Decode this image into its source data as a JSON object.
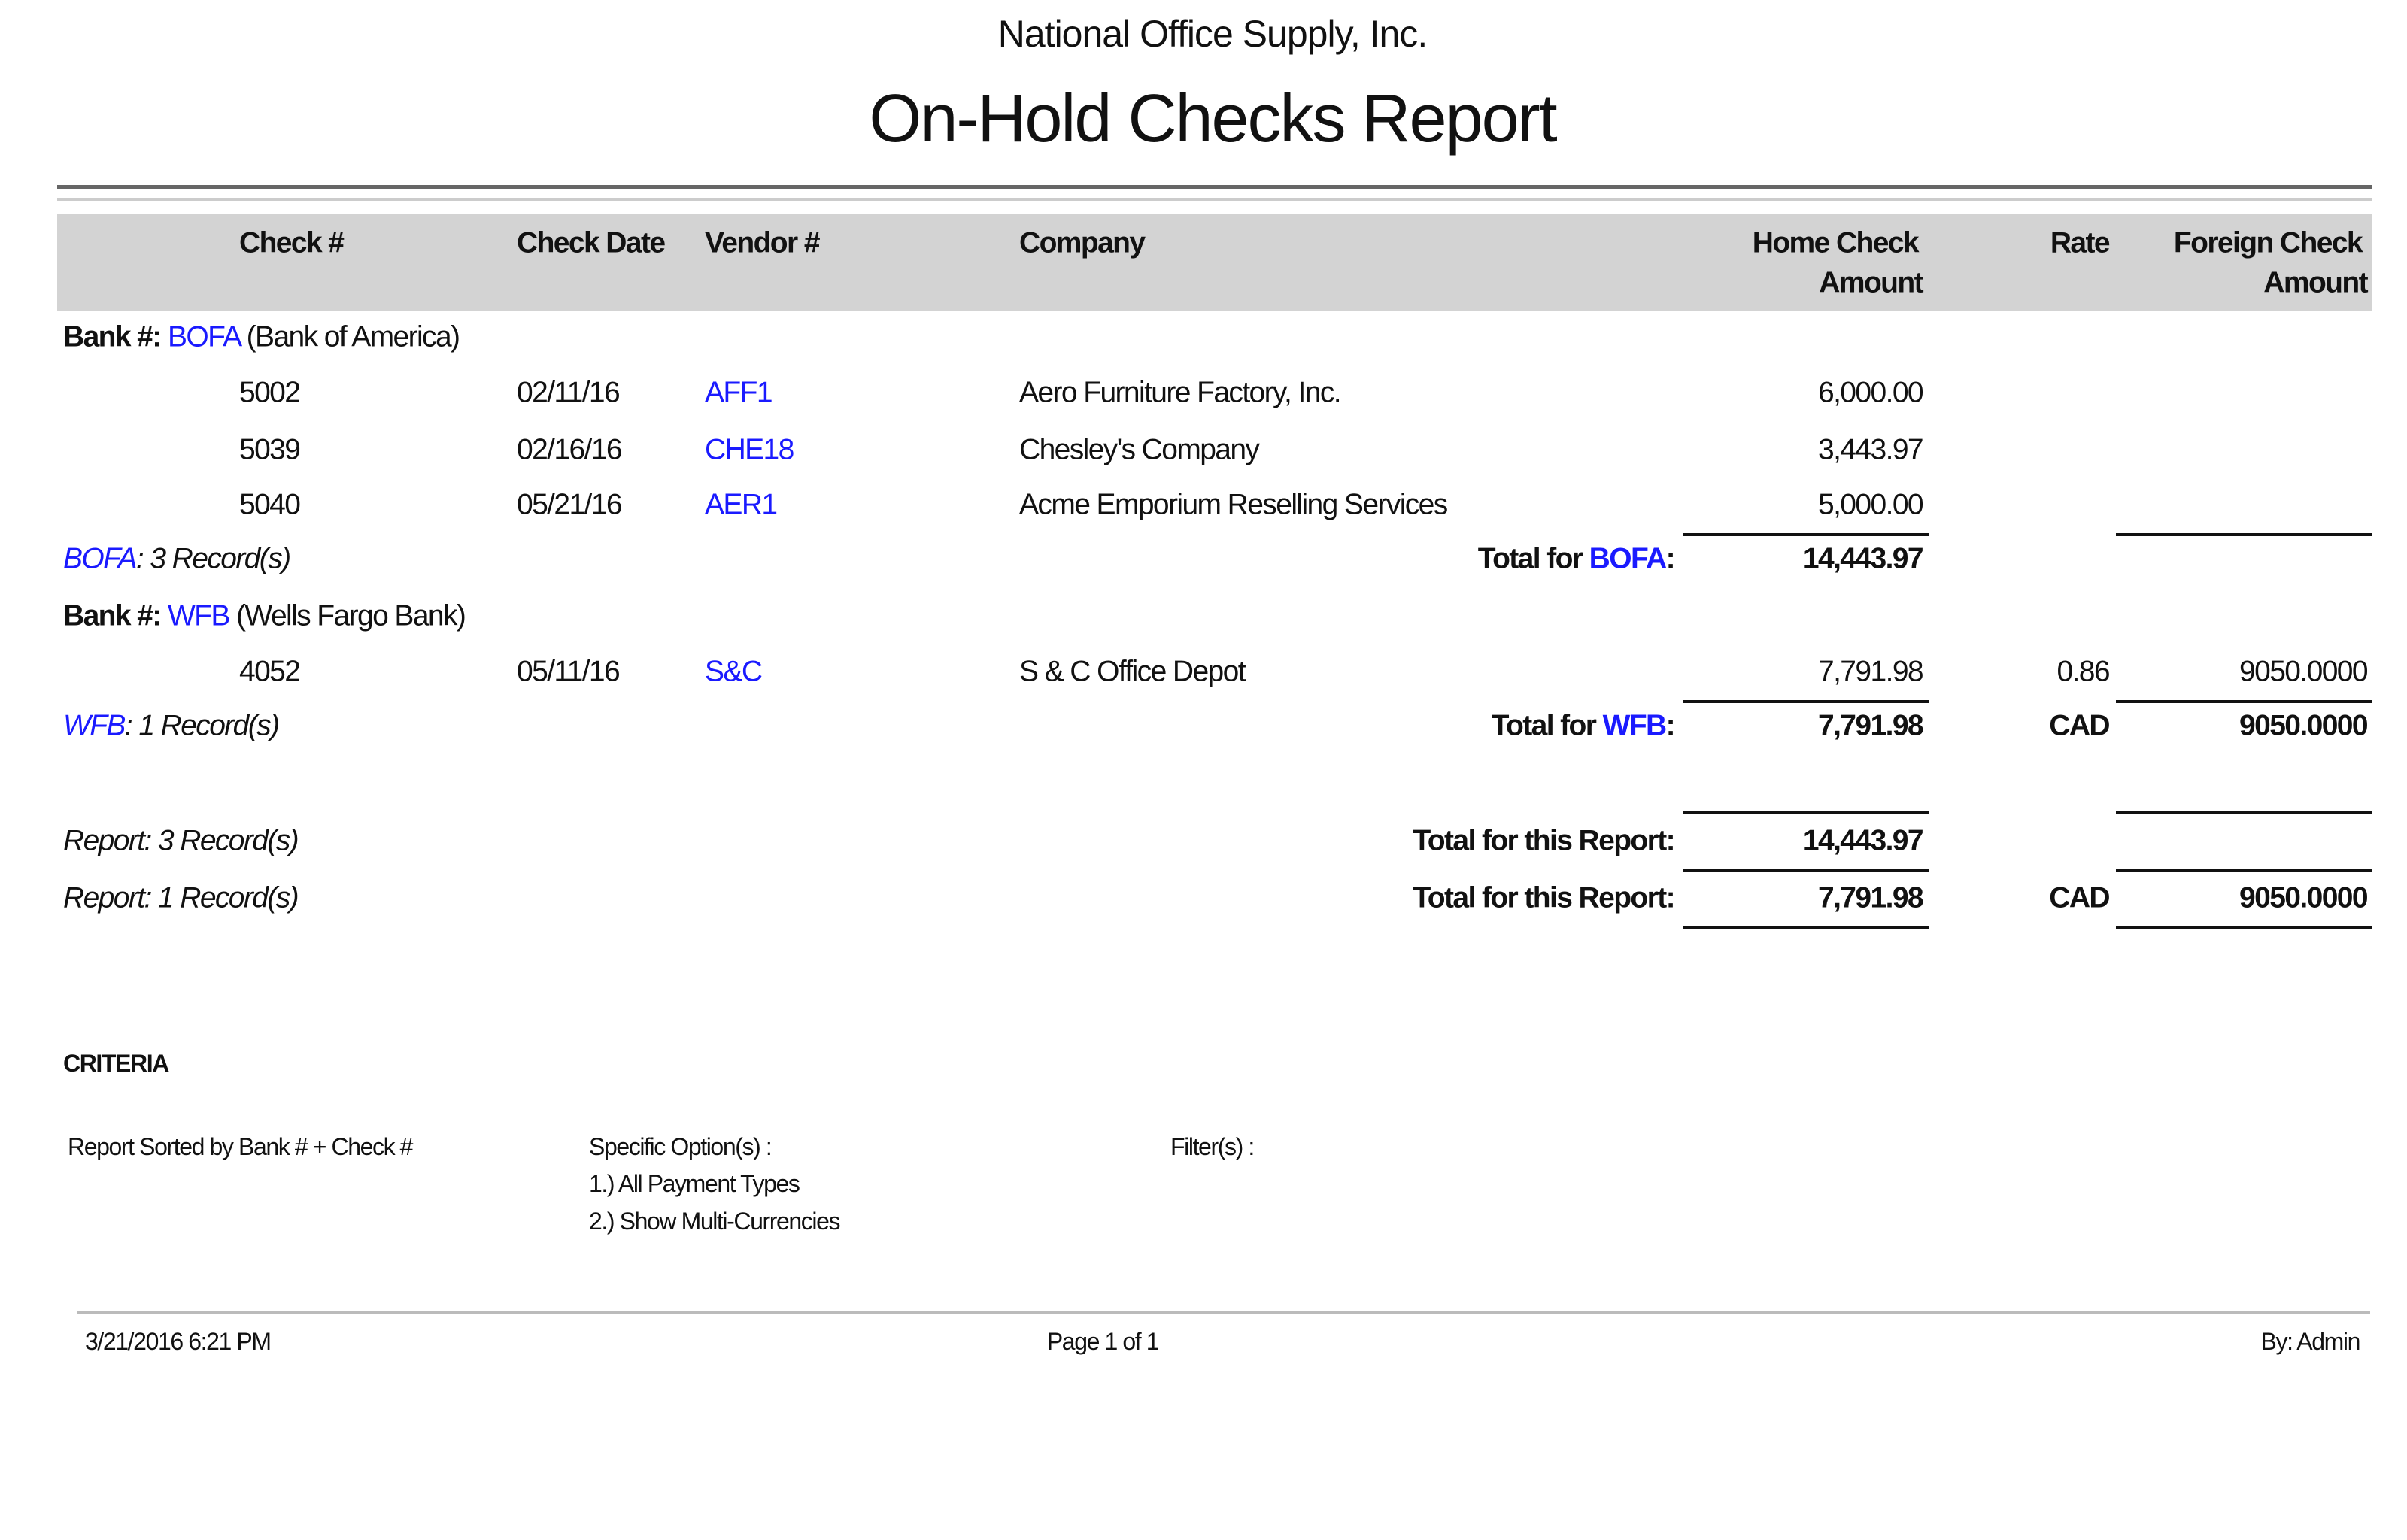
{
  "header": {
    "company_name": "National Office Supply, Inc.",
    "report_title": "On-Hold Checks Report"
  },
  "columns": {
    "check_no": "Check #",
    "check_date": "Check Date",
    "vendor_no": "Vendor #",
    "company": "Company",
    "home_amount_1": "Home Check",
    "home_amount_2": "Amount",
    "rate": "Rate",
    "foreign_amount_1": "Foreign Check",
    "foreign_amount_2": "Amount"
  },
  "groups": [
    {
      "bank_label": "Bank #:",
      "bank_code": "BOFA",
      "bank_name": "(Bank of America)",
      "rows": [
        {
          "check_no": "5002",
          "check_date": "02/11/16",
          "vendor_no": "AFF1",
          "company": "Aero Furniture Factory, Inc.",
          "home_amount": "6,000.00"
        },
        {
          "check_no": "5039",
          "check_date": "02/16/16",
          "vendor_no": "CHE18",
          "company": "Chesley's Company",
          "home_amount": "3,443.97"
        },
        {
          "check_no": "5040",
          "check_date": "05/21/16",
          "vendor_no": "AER1",
          "company": "Acme Emporium Reselling Services",
          "home_amount": "5,000.00"
        }
      ],
      "records_code": "BOFA",
      "records_text": ": 3 Record(s)",
      "total_label": "Total for ",
      "total_code": "BOFA",
      "total_colon": ":",
      "total_home": "14,443.97"
    },
    {
      "bank_label": "Bank #:",
      "bank_code": "WFB",
      "bank_name": "(Wells Fargo Bank)",
      "rows": [
        {
          "check_no": "4052",
          "check_date": "05/11/16",
          "vendor_no": "S&C",
          "company": "S & C Office Depot",
          "home_amount": "7,791.98",
          "rate": "0.86",
          "foreign_amount": "9050.0000"
        }
      ],
      "records_code": "WFB",
      "records_text": ": 1 Record(s)",
      "total_label": "Total for ",
      "total_code": "WFB",
      "total_colon": ":",
      "total_home": "7,791.98",
      "total_currency": "CAD",
      "total_foreign": "9050.0000"
    }
  ],
  "report_totals": [
    {
      "records": "Report: 3 Record(s)",
      "label": "Total for this Report:",
      "home": "14,443.97"
    },
    {
      "records": "Report: 1 Record(s)",
      "label": "Total for this Report:",
      "home": "7,791.98",
      "currency": "CAD",
      "foreign": "9050.0000"
    }
  ],
  "criteria": {
    "title": "CRITERIA",
    "sorted_by": "Report Sorted by Bank # + Check #",
    "options_label": "Specific Option(s) :",
    "options": [
      "1.) All Payment Types",
      "2.) Show Multi-Currencies"
    ],
    "filters_label": "Filter(s) :"
  },
  "footer": {
    "timestamp": "3/21/2016 6:21 PM",
    "page": "Page 1 of 1",
    "by": "By: Admin"
  },
  "colors": {
    "link": "#1a1aff",
    "header_band": "#d3d3d3"
  }
}
